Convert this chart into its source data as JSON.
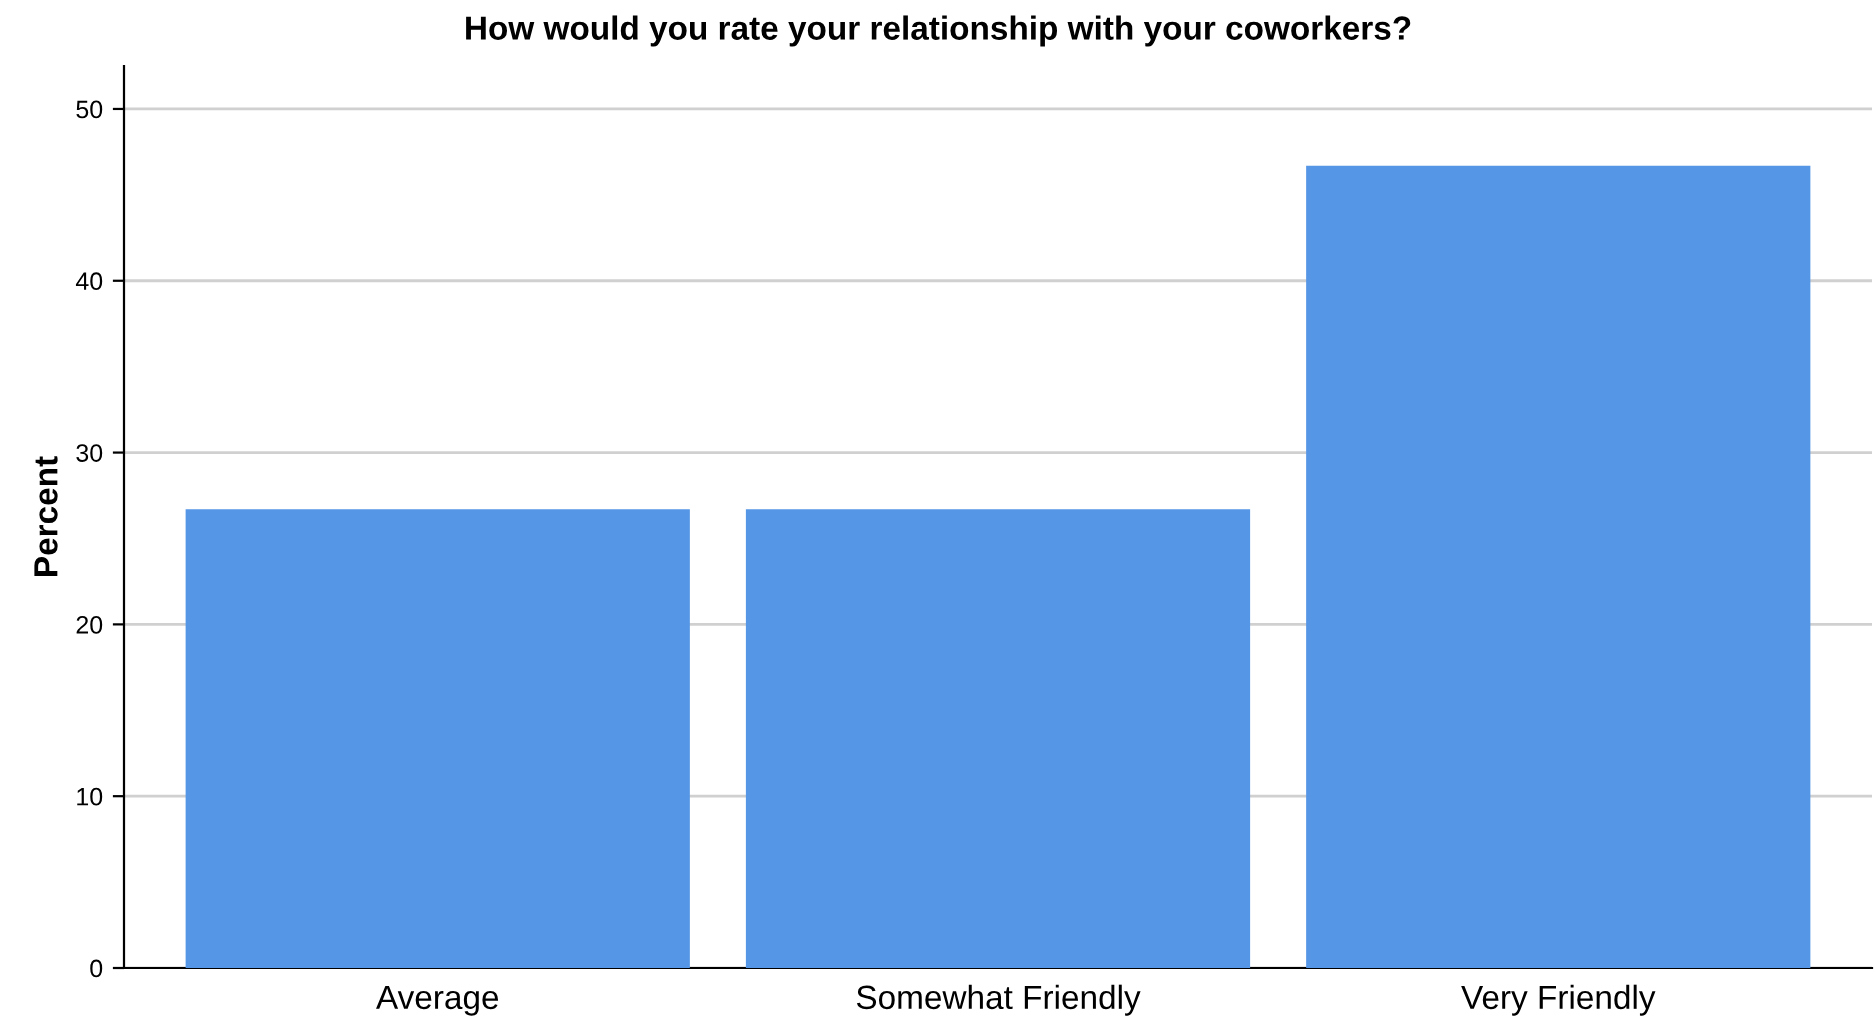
{
  "chart_data": {
    "type": "bar",
    "title": "How would you rate your relationship with your coworkers?",
    "ylabel": "Percent",
    "categories": [
      "Average",
      "Somewhat Friendly",
      "Very Friendly"
    ],
    "values": [
      26.7,
      26.7,
      46.7
    ],
    "color": "#5596e6",
    "ylim": [
      0,
      52.5
    ],
    "yticks": [
      0,
      10,
      20,
      30,
      40,
      50
    ],
    "grid": "y",
    "legend": false
  }
}
